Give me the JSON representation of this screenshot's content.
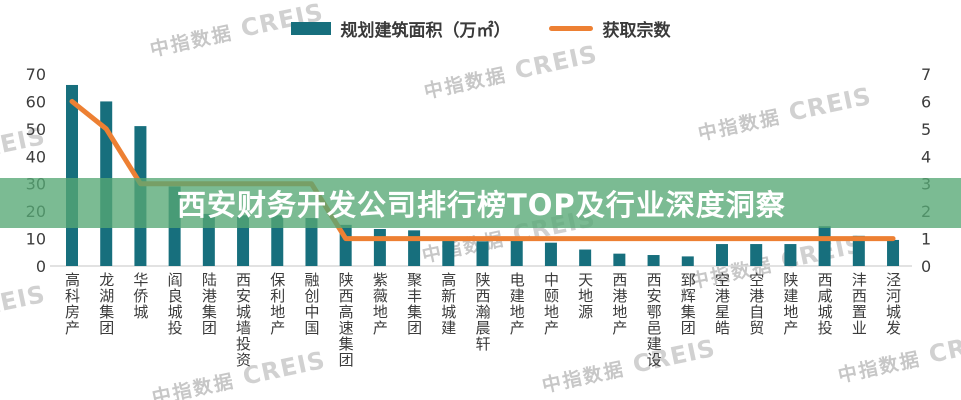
{
  "banner": {
    "title": "西安财务开发公司排行榜TOP及行业深度洞察"
  },
  "watermark": {
    "cn": "中指数据",
    "en": "CREIS"
  },
  "legend": {
    "bar_label": "规划建筑面积（万㎡）",
    "line_label": "获取宗数"
  },
  "colors": {
    "bar": "#176f7d",
    "line": "#ed8033",
    "banner_overlay": "rgba(86,168,116,0.78)",
    "axis_text": "#3d3d3d",
    "axis_line": "#d8d8d8",
    "watermark": "#c2c2c2",
    "title_text": "#ffffff"
  },
  "chart_data": {
    "type": "bar",
    "subtype": "bar+line combo",
    "title": "西安财务开发公司排行榜TOP及行业深度洞察",
    "xlabel": "",
    "ylabel_left": "规划建筑面积（万㎡）",
    "ylabel_right": "获取宗数",
    "grid": false,
    "legend_position": "top-center",
    "categories": [
      "高科房产",
      "龙湖集团",
      "华侨城",
      "阎良城投",
      "陆港集团",
      "西安城墙投资",
      "保利地产",
      "融创中国",
      "陕西高速集团",
      "紫薇地产",
      "聚丰集团",
      "高新城建",
      "陕西瀚晨轩",
      "电建地产",
      "中颐地产",
      "天地源",
      "西港地产",
      "西安鄂邑建设",
      "郅辉集团",
      "空港星皓",
      "空港自贸",
      "陕建地产",
      "西咸城投",
      "沣西置业",
      "泾河城发"
    ],
    "series": [
      {
        "name": "规划建筑面积（万㎡）",
        "type": "bar",
        "axis": "left",
        "color": "#176f7d",
        "values": [
          66,
          60,
          51,
          29,
          19,
          18.5,
          18.5,
          17.5,
          15,
          13.5,
          13,
          9.5,
          9,
          10,
          8.5,
          6,
          4.5,
          4,
          3.5,
          8,
          8,
          8,
          14.5,
          11,
          9.5
        ]
      },
      {
        "name": "获取宗数",
        "type": "line",
        "axis": "right",
        "color": "#ed8033",
        "values": [
          6,
          5,
          3,
          3,
          3,
          3,
          3,
          3,
          1,
          1,
          1,
          1,
          1,
          1,
          1,
          1,
          1,
          1,
          1,
          1,
          1,
          1,
          1,
          1,
          1
        ]
      }
    ],
    "left_axis": {
      "range": [
        0,
        70
      ],
      "ticks": [
        0,
        10,
        20,
        30,
        40,
        50,
        60,
        70
      ]
    },
    "right_axis": {
      "range": [
        0,
        7
      ],
      "ticks": [
        0,
        1,
        2,
        3,
        4,
        5,
        6,
        7
      ]
    }
  }
}
